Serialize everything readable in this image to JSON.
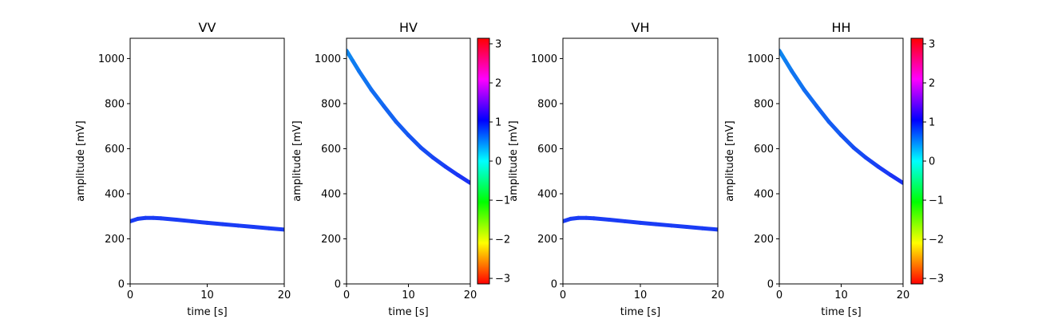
{
  "chart_data": [
    {
      "type": "line",
      "title": "VV",
      "xlabel": "time [s]",
      "ylabel": "amplitude [mV]",
      "xlim": [
        0,
        20
      ],
      "ylim": [
        0,
        1090
      ],
      "xticks": [
        "0",
        "10",
        "20"
      ],
      "yticks": [
        "0",
        "200",
        "400",
        "600",
        "800",
        "1000"
      ],
      "series": [
        {
          "x": [
            0,
            1,
            2,
            3,
            4,
            6,
            8,
            10,
            12,
            14,
            16,
            18,
            20
          ],
          "y": [
            278,
            289,
            293,
            293,
            291,
            285,
            278,
            271,
            265,
            259,
            253,
            247,
            241
          ],
          "color": "#1a3cf5"
        }
      ]
    },
    {
      "type": "line",
      "title": "HV",
      "xlabel": "time [s]",
      "ylabel": "amplitude [mV]",
      "xlim": [
        0,
        20
      ],
      "ylim": [
        0,
        1090
      ],
      "xticks": [
        "0",
        "10",
        "20"
      ],
      "yticks": [
        "0",
        "200",
        "400",
        "600",
        "800",
        "1000"
      ],
      "series": [
        {
          "x": [
            0,
            1,
            2,
            4,
            6,
            8,
            10,
            12,
            14,
            16,
            18,
            20
          ],
          "y": [
            1035,
            990,
            945,
            862,
            790,
            720,
            660,
            605,
            560,
            520,
            483,
            448
          ],
          "color_start": "#0e85f0",
          "color_end": "#1a32f5"
        }
      ],
      "colorbar": {
        "ticks": [
          "3",
          "2",
          "1",
          "0",
          "−1",
          "−2",
          "−3"
        ],
        "range": [
          -3.14159,
          3.14159
        ],
        "colormap": "hsv"
      }
    },
    {
      "type": "line",
      "title": "VH",
      "xlabel": "time [s]",
      "ylabel": "amplitude [mV]",
      "xlim": [
        0,
        20
      ],
      "ylim": [
        0,
        1090
      ],
      "xticks": [
        "0",
        "10",
        "20"
      ],
      "yticks": [
        "0",
        "200",
        "400",
        "600",
        "800",
        "1000"
      ],
      "series": [
        {
          "x": [
            0,
            1,
            2,
            3,
            4,
            6,
            8,
            10,
            12,
            14,
            16,
            18,
            20
          ],
          "y": [
            278,
            289,
            293,
            293,
            291,
            285,
            278,
            271,
            265,
            259,
            253,
            247,
            241
          ],
          "color": "#1a3cf5"
        }
      ]
    },
    {
      "type": "line",
      "title": "HH",
      "xlabel": "time [s]",
      "ylabel": "amplitude [mV]",
      "xlim": [
        0,
        20
      ],
      "ylim": [
        0,
        1090
      ],
      "xticks": [
        "0",
        "10",
        "20"
      ],
      "yticks": [
        "0",
        "200",
        "400",
        "600",
        "800",
        "1000"
      ],
      "series": [
        {
          "x": [
            0,
            1,
            2,
            4,
            6,
            8,
            10,
            12,
            14,
            16,
            18,
            20
          ],
          "y": [
            1035,
            990,
            945,
            862,
            790,
            720,
            660,
            605,
            560,
            520,
            483,
            448
          ],
          "color_start": "#0e85f0",
          "color_end": "#1a32f5"
        }
      ],
      "colorbar": {
        "ticks": [
          "3",
          "2",
          "1",
          "0",
          "−1",
          "−2",
          "−3"
        ],
        "range": [
          -3.14159,
          3.14159
        ],
        "colormap": "hsv"
      }
    }
  ]
}
